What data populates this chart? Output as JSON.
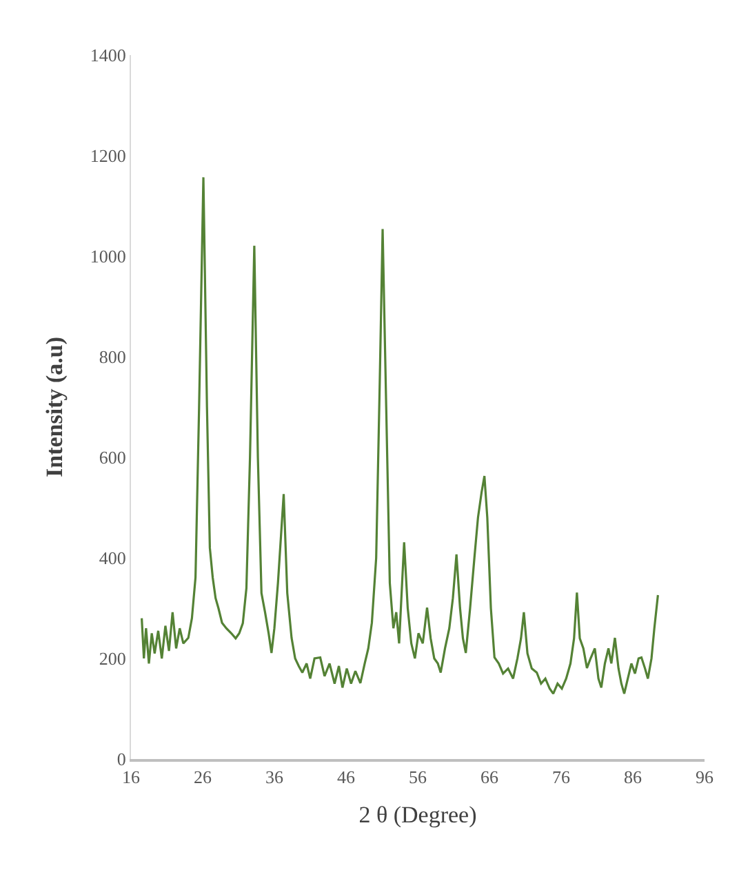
{
  "chart_data": {
    "type": "line",
    "xlabel": "2 θ (Degree)",
    "ylabel": "Intensity (a.u)",
    "xlim": [
      16,
      96
    ],
    "xticks": [
      16,
      26,
      36,
      46,
      56,
      66,
      76,
      86,
      96
    ],
    "ylim": [
      0,
      1400
    ],
    "yticks": [
      0,
      200,
      400,
      600,
      800,
      1000,
      1200,
      1400
    ],
    "marker": "none",
    "line_style": "solid",
    "series": [
      {
        "color": "#548235",
        "x": [
          17.5,
          17.8,
          18.1,
          18.5,
          18.9,
          19.3,
          19.8,
          20.3,
          20.8,
          21.3,
          21.8,
          22.3,
          22.8,
          23.3,
          24.0,
          24.5,
          25.0,
          25.5,
          26.1,
          26.6,
          27.0,
          27.4,
          27.8,
          28.2,
          28.7,
          29.3,
          30.0,
          30.6,
          31.1,
          31.6,
          32.1,
          32.6,
          33.2,
          33.7,
          34.2,
          34.7,
          35.2,
          35.6,
          36.0,
          36.5,
          37.3,
          37.8,
          38.4,
          38.9,
          39.4,
          39.9,
          40.5,
          41.0,
          41.6,
          42.4,
          43.0,
          43.7,
          44.4,
          45.0,
          45.5,
          46.1,
          46.7,
          47.3,
          48.0,
          48.6,
          49.1,
          49.6,
          50.2,
          50.7,
          51.1,
          51.6,
          52.1,
          52.6,
          53.0,
          53.4,
          54.1,
          54.6,
          55.1,
          55.6,
          56.1,
          56.7,
          57.3,
          57.8,
          58.3,
          58.8,
          59.2,
          59.8,
          60.4,
          60.9,
          61.4,
          61.9,
          62.3,
          62.7,
          63.3,
          63.9,
          64.4,
          64.9,
          65.3,
          65.7,
          66.2,
          66.7,
          67.3,
          67.9,
          68.6,
          69.3,
          69.9,
          70.4,
          70.8,
          71.3,
          71.9,
          72.6,
          73.2,
          73.8,
          74.4,
          74.9,
          75.5,
          76.1,
          76.7,
          77.3,
          77.8,
          78.2,
          78.6,
          79.1,
          79.6,
          80.1,
          80.7,
          81.2,
          81.6,
          82.1,
          82.6,
          83.0,
          83.5,
          84.0,
          84.4,
          84.8,
          85.3,
          85.8,
          86.3,
          86.8,
          87.2,
          87.7,
          88.1,
          88.6,
          89.0,
          89.5
        ],
        "values": [
          280,
          200,
          260,
          190,
          250,
          210,
          255,
          200,
          265,
          215,
          292,
          220,
          260,
          230,
          241,
          280,
          361,
          700,
          1157,
          700,
          420,
          361,
          320,
          300,
          271,
          260,
          250,
          240,
          250,
          270,
          340,
          600,
          1021,
          600,
          330,
          292,
          250,
          211,
          260,
          350,
          527,
          330,
          241,
          200,
          185,
          172,
          190,
          160,
          200,
          202,
          165,
          190,
          150,
          185,
          142,
          180,
          150,
          175,
          151,
          190,
          220,
          271,
          400,
          750,
          1054,
          700,
          350,
          260,
          292,
          230,
          431,
          300,
          230,
          200,
          250,
          230,
          301,
          240,
          200,
          190,
          172,
          220,
          260,
          320,
          407,
          300,
          240,
          211,
          300,
          400,
          480,
          530,
          563,
          480,
          300,
          202,
          190,
          170,
          180,
          160,
          200,
          240,
          292,
          210,
          180,
          172,
          150,
          160,
          140,
          130,
          150,
          140,
          160,
          190,
          240,
          331,
          240,
          220,
          181,
          200,
          220,
          160,
          142,
          190,
          220,
          190,
          241,
          180,
          150,
          130,
          160,
          190,
          170,
          200,
          202,
          180,
          160,
          200,
          260,
          326
        ]
      }
    ]
  }
}
